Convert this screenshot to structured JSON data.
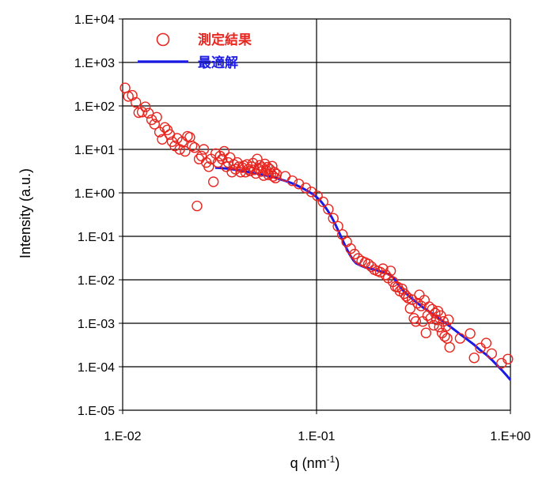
{
  "chart_data": {
    "type": "scatter",
    "xlabel": "q (nm",
    "xlabel_sup": "-1",
    "xlabel_close": ")",
    "ylabel": "Intensity (a.u.)",
    "x_scale": "log",
    "y_scale": "log",
    "xlim": [
      0.01,
      1.0
    ],
    "ylim": [
      1e-05,
      10000
    ],
    "x_ticks": [
      {
        "value": 0.01,
        "label": "1.E-02"
      },
      {
        "value": 0.1,
        "label": "1.E-01"
      },
      {
        "value": 1.0,
        "label": "1.E+00"
      }
    ],
    "y_ticks": [
      {
        "value": 10000,
        "label": "1.E+04"
      },
      {
        "value": 1000,
        "label": "1.E+03"
      },
      {
        "value": 100,
        "label": "1.E+02"
      },
      {
        "value": 10,
        "label": "1.E+01"
      },
      {
        "value": 1,
        "label": "1.E+00"
      },
      {
        "value": 0.1,
        "label": "1.E-01"
      },
      {
        "value": 0.01,
        "label": "1.E-02"
      },
      {
        "value": 0.001,
        "label": "1.E-03"
      },
      {
        "value": 0.0001,
        "label": "1.E-04"
      },
      {
        "value": 1e-05,
        "label": "1.E-05"
      }
    ],
    "grid": "horizontal at decades, vertical at 1.E-01",
    "legend_position": "top-left",
    "colors": {
      "measured": "#e8251f",
      "fit": "#1a1ae6",
      "grid": "#000000"
    },
    "series": [
      {
        "name": "測定結果",
        "style": "open-circle",
        "points": [
          [
            0.0103,
            260
          ],
          [
            0.0107,
            165
          ],
          [
            0.0112,
            175
          ],
          [
            0.0117,
            120
          ],
          [
            0.0121,
            70
          ],
          [
            0.0126,
            72
          ],
          [
            0.0131,
            95
          ],
          [
            0.0136,
            68
          ],
          [
            0.0141,
            48
          ],
          [
            0.0146,
            38
          ],
          [
            0.015,
            55
          ],
          [
            0.0155,
            25
          ],
          [
            0.016,
            17
          ],
          [
            0.0165,
            32
          ],
          [
            0.017,
            28
          ],
          [
            0.0175,
            22
          ],
          [
            0.018,
            15
          ],
          [
            0.0186,
            12
          ],
          [
            0.0191,
            18
          ],
          [
            0.0197,
            10
          ],
          [
            0.0203,
            15
          ],
          [
            0.021,
            9
          ],
          [
            0.0216,
            20
          ],
          [
            0.0222,
            19
          ],
          [
            0.0228,
            12
          ],
          [
            0.0235,
            11
          ],
          [
            0.0242,
            0.5
          ],
          [
            0.0248,
            6
          ],
          [
            0.0255,
            7
          ],
          [
            0.0262,
            10
          ],
          [
            0.027,
            5
          ],
          [
            0.0278,
            4
          ],
          [
            0.0286,
            6
          ],
          [
            0.0294,
            1.8
          ],
          [
            0.0302,
            8
          ],
          [
            0.031,
            5
          ],
          [
            0.0318,
            7
          ],
          [
            0.0326,
            6
          ],
          [
            0.0334,
            9
          ],
          [
            0.0342,
            4
          ],
          [
            0.035,
            5
          ],
          [
            0.0358,
            6.5
          ],
          [
            0.0366,
            3
          ],
          [
            0.0374,
            4.5
          ],
          [
            0.0382,
            3.5
          ],
          [
            0.039,
            5
          ],
          [
            0.0398,
            4
          ],
          [
            0.0406,
            3
          ],
          [
            0.0414,
            3.8
          ],
          [
            0.0422,
            4.2
          ],
          [
            0.043,
            3
          ],
          [
            0.0438,
            4.5
          ],
          [
            0.0446,
            3.5
          ],
          [
            0.0454,
            3.2
          ],
          [
            0.0462,
            4
          ],
          [
            0.047,
            4.8
          ],
          [
            0.0478,
            3.4
          ],
          [
            0.0486,
            2.8
          ],
          [
            0.0494,
            6
          ],
          [
            0.0502,
            3.6
          ],
          [
            0.051,
            4.3
          ],
          [
            0.0518,
            3.1
          ],
          [
            0.0526,
            3.8
          ],
          [
            0.0534,
            2.5
          ],
          [
            0.0542,
            4.6
          ],
          [
            0.055,
            3.3
          ],
          [
            0.0558,
            3.9
          ],
          [
            0.0566,
            2.6
          ],
          [
            0.0574,
            3.5
          ],
          [
            0.0582,
            2.8
          ],
          [
            0.059,
            4.1
          ],
          [
            0.0598,
            2.4
          ],
          [
            0.0606,
            3
          ],
          [
            0.0614,
            2.2
          ],
          [
            0.0622,
            2.7
          ],
          [
            0.069,
            2.4
          ],
          [
            0.075,
            1.9
          ],
          [
            0.081,
            1.6
          ],
          [
            0.088,
            1.3
          ],
          [
            0.094,
            1.05
          ],
          [
            0.101,
            0.85
          ],
          [
            0.108,
            0.62
          ],
          [
            0.115,
            0.42
          ],
          [
            0.122,
            0.26
          ],
          [
            0.129,
            0.17
          ],
          [
            0.136,
            0.11
          ],
          [
            0.143,
            0.075
          ],
          [
            0.15,
            0.052
          ],
          [
            0.157,
            0.039
          ],
          [
            0.164,
            0.031
          ],
          [
            0.171,
            0.027
          ],
          [
            0.178,
            0.025
          ],
          [
            0.185,
            0.023
          ],
          [
            0.192,
            0.02
          ],
          [
            0.199,
            0.017
          ],
          [
            0.206,
            0.016
          ],
          [
            0.213,
            0.015
          ],
          [
            0.22,
            0.018
          ],
          [
            0.227,
            0.013
          ],
          [
            0.234,
            0.011
          ],
          [
            0.241,
            0.016
          ],
          [
            0.248,
            0.009
          ],
          [
            0.255,
            0.007
          ],
          [
            0.262,
            0.0068
          ],
          [
            0.269,
            0.0055
          ],
          [
            0.276,
            0.0062
          ],
          [
            0.283,
            0.0048
          ],
          [
            0.29,
            0.0042
          ],
          [
            0.297,
            0.0038
          ],
          [
            0.304,
            0.0022
          ],
          [
            0.311,
            0.0035
          ],
          [
            0.318,
            0.0013
          ],
          [
            0.325,
            0.0011
          ],
          [
            0.332,
            0.0029
          ],
          [
            0.339,
            0.0045
          ],
          [
            0.346,
            0.0025
          ],
          [
            0.353,
            0.0011
          ],
          [
            0.36,
            0.0034
          ],
          [
            0.367,
            0.0006
          ],
          [
            0.374,
            0.0015
          ],
          [
            0.381,
            0.0024
          ],
          [
            0.388,
            0.0013
          ],
          [
            0.395,
            0.0021
          ],
          [
            0.402,
            0.0009
          ],
          [
            0.409,
            0.0017
          ],
          [
            0.416,
            0.0012
          ],
          [
            0.423,
            0.0019
          ],
          [
            0.43,
            0.00082
          ],
          [
            0.437,
            0.0015
          ],
          [
            0.444,
            0.0006
          ],
          [
            0.451,
            0.0011
          ],
          [
            0.458,
            0.0005
          ],
          [
            0.465,
            0.00085
          ],
          [
            0.472,
            0.00045
          ],
          [
            0.479,
            0.0012
          ],
          [
            0.486,
            0.00028
          ],
          [
            0.55,
            0.00045
          ],
          [
            0.62,
            0.00058
          ],
          [
            0.65,
            0.00016
          ],
          [
            0.7,
            0.00027
          ],
          [
            0.75,
            0.00035
          ],
          [
            0.8,
            0.0002
          ],
          [
            0.9,
            0.00012
          ],
          [
            0.97,
            0.00015
          ]
        ]
      },
      {
        "name": "最適解",
        "style": "line",
        "points": [
          [
            0.03,
            3.8
          ],
          [
            0.035,
            3.6
          ],
          [
            0.04,
            3.3
          ],
          [
            0.045,
            3.0
          ],
          [
            0.05,
            2.75
          ],
          [
            0.055,
            2.5
          ],
          [
            0.06,
            2.3
          ],
          [
            0.065,
            2.05
          ],
          [
            0.07,
            1.85
          ],
          [
            0.075,
            1.65
          ],
          [
            0.08,
            1.45
          ],
          [
            0.085,
            1.27
          ],
          [
            0.09,
            1.1
          ],
          [
            0.095,
            0.95
          ],
          [
            0.1,
            0.8
          ],
          [
            0.105,
            0.65
          ],
          [
            0.11,
            0.5
          ],
          [
            0.115,
            0.37
          ],
          [
            0.12,
            0.27
          ],
          [
            0.125,
            0.19
          ],
          [
            0.13,
            0.13
          ],
          [
            0.135,
            0.09
          ],
          [
            0.14,
            0.063
          ],
          [
            0.145,
            0.046
          ],
          [
            0.15,
            0.035
          ],
          [
            0.155,
            0.028
          ],
          [
            0.16,
            0.024
          ],
          [
            0.17,
            0.021
          ],
          [
            0.18,
            0.019
          ],
          [
            0.19,
            0.018
          ],
          [
            0.2,
            0.017
          ],
          [
            0.21,
            0.016
          ],
          [
            0.22,
            0.015
          ],
          [
            0.23,
            0.014
          ],
          [
            0.24,
            0.013
          ],
          [
            0.25,
            0.011
          ],
          [
            0.26,
            0.0085
          ],
          [
            0.27,
            0.0068
          ],
          [
            0.28,
            0.0056
          ],
          [
            0.3,
            0.0042
          ],
          [
            0.32,
            0.0033
          ],
          [
            0.35,
            0.0024
          ],
          [
            0.4,
            0.0016
          ],
          [
            0.45,
            0.0011
          ],
          [
            0.5,
            0.00078
          ],
          [
            0.55,
            0.00056
          ],
          [
            0.6,
            0.00042
          ],
          [
            0.65,
            0.00032
          ],
          [
            0.7,
            0.00024
          ],
          [
            0.75,
            0.00019
          ],
          [
            0.8,
            0.000145
          ],
          [
            0.85,
            0.00011
          ],
          [
            0.9,
            8.5e-05
          ],
          [
            0.95,
            6.5e-05
          ],
          [
            1.0,
            5e-05
          ]
        ]
      }
    ]
  }
}
